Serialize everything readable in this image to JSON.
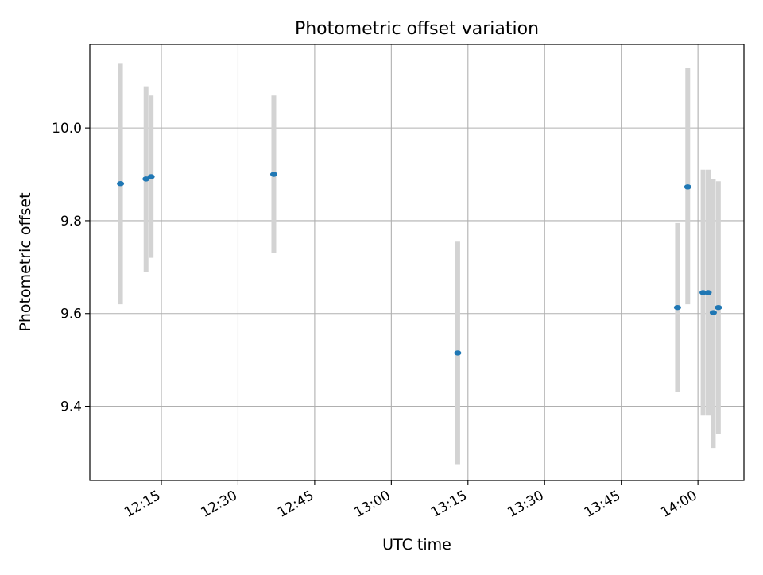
{
  "chart_data": {
    "type": "scatter",
    "title": "Photometric offset variation",
    "xlabel": "UTC time",
    "ylabel": "Photometric offset",
    "x_ticks": [
      "12:15",
      "12:30",
      "12:45",
      "13:00",
      "13:15",
      "13:30",
      "13:45",
      "14:00"
    ],
    "x_tick_minutes": [
      735,
      750,
      765,
      780,
      795,
      810,
      825,
      840
    ],
    "y_ticks": [
      "9.4",
      "9.6",
      "9.8",
      "10.0"
    ],
    "y_tick_values": [
      9.4,
      9.6,
      9.8,
      10.0
    ],
    "xlim": [
      "12:01",
      "14:09"
    ],
    "ylim": [
      9.24,
      10.18
    ],
    "grid": true,
    "colors": {
      "points": "#1f77b4",
      "errorbars": "#d3d3d3",
      "grid": "#b0b0b0"
    },
    "points": [
      {
        "x": "12:07",
        "y": 9.88,
        "ymin": 9.62,
        "ymax": 10.14
      },
      {
        "x": "12:12",
        "y": 9.89,
        "ymin": 9.69,
        "ymax": 10.09
      },
      {
        "x": "12:13",
        "y": 9.895,
        "ymin": 9.72,
        "ymax": 10.07
      },
      {
        "x": "12:37",
        "y": 9.9,
        "ymin": 9.73,
        "ymax": 10.07
      },
      {
        "x": "13:13",
        "y": 9.515,
        "ymin": 9.275,
        "ymax": 9.755
      },
      {
        "x": "13:56",
        "y": 9.613,
        "ymin": 9.43,
        "ymax": 9.795
      },
      {
        "x": "13:58",
        "y": 9.873,
        "ymin": 9.62,
        "ymax": 10.13
      },
      {
        "x": "14:01",
        "y": 9.645,
        "ymin": 9.38,
        "ymax": 9.91
      },
      {
        "x": "14:02",
        "y": 9.645,
        "ymin": 9.38,
        "ymax": 9.91
      },
      {
        "x": "14:03",
        "y": 9.602,
        "ymin": 9.31,
        "ymax": 9.89
      },
      {
        "x": "14:04",
        "y": 9.613,
        "ymin": 9.34,
        "ymax": 9.885
      }
    ]
  }
}
